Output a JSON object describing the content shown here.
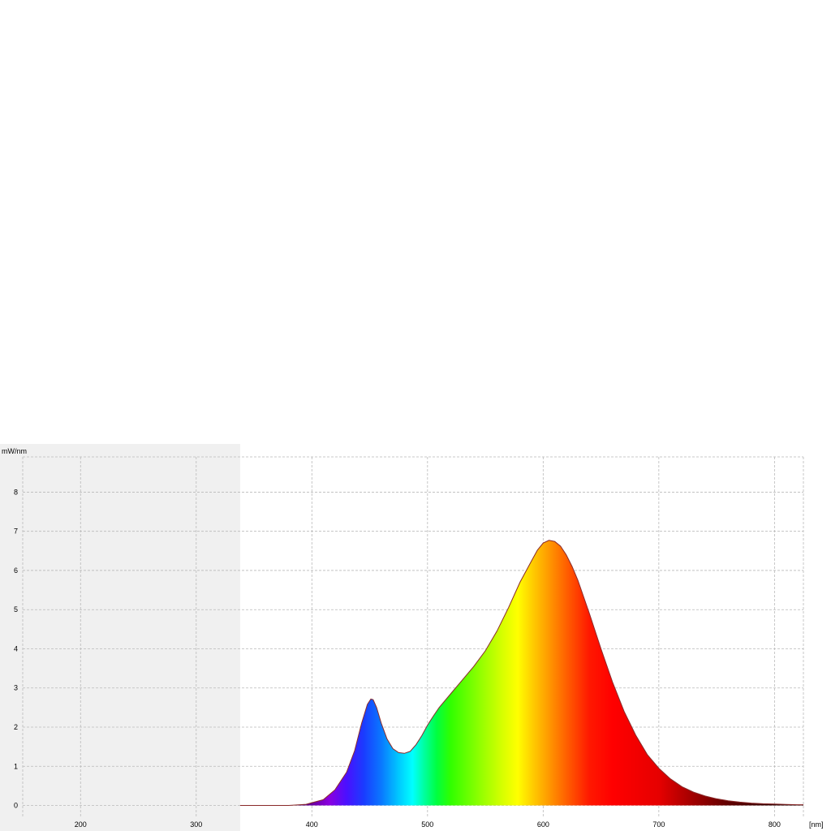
{
  "chart_data": {
    "type": "area",
    "ylabel": "mW/nm",
    "xlabel": "[nm]",
    "xlim": [
      150,
      825
    ],
    "ylim": [
      -0.3,
      8.9
    ],
    "xticks": [
      200,
      300,
      400,
      500,
      600,
      700,
      800
    ],
    "yticks": [
      0,
      1,
      2,
      3,
      4,
      5,
      6,
      7,
      8
    ],
    "shaded_region": [
      150,
      338
    ],
    "grid": true,
    "series": [
      {
        "x": [
          338,
          380,
          395,
          410,
          420,
          430,
          437,
          443,
          448,
          451,
          453,
          456,
          460,
          465,
          470,
          475,
          480,
          485,
          490,
          495,
          500,
          505,
          510,
          520,
          530,
          540,
          550,
          560,
          570,
          580,
          590,
          595,
          600,
          605,
          610,
          615,
          620,
          625,
          630,
          640,
          650,
          660,
          670,
          680,
          690,
          700,
          710,
          720,
          730,
          740,
          750,
          760,
          770,
          780,
          790,
          800,
          810,
          820,
          825
        ],
        "y": [
          0,
          0,
          0.03,
          0.15,
          0.4,
          0.85,
          1.4,
          2.1,
          2.58,
          2.72,
          2.7,
          2.5,
          2.1,
          1.7,
          1.45,
          1.35,
          1.33,
          1.38,
          1.55,
          1.78,
          2.05,
          2.28,
          2.5,
          2.85,
          3.2,
          3.55,
          3.95,
          4.45,
          5.05,
          5.7,
          6.25,
          6.52,
          6.7,
          6.77,
          6.74,
          6.62,
          6.4,
          6.1,
          5.75,
          4.9,
          4.0,
          3.15,
          2.4,
          1.8,
          1.3,
          0.95,
          0.68,
          0.48,
          0.34,
          0.24,
          0.17,
          0.12,
          0.085,
          0.06,
          0.045,
          0.035,
          0.025,
          0.02,
          0.02
        ]
      }
    ]
  }
}
